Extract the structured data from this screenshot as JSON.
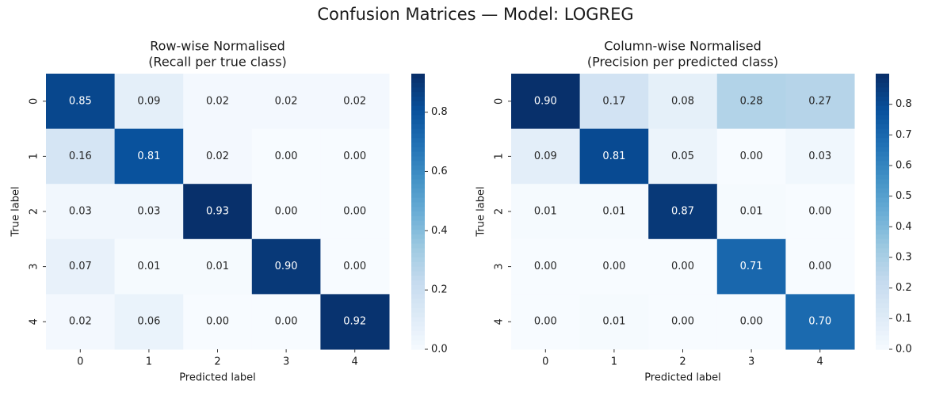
{
  "figure_title": "Confusion Matrices — Model: LOGREG",
  "colormap": [
    "#f7fbff",
    "#deebf7",
    "#c6dbef",
    "#9ecae1",
    "#6baed6",
    "#4292c6",
    "#2171b5",
    "#08519c",
    "#08306b"
  ],
  "chart_data": [
    {
      "type": "heatmap",
      "title": [
        "Row-wise Normalised",
        "(Recall per true class)"
      ],
      "xlabel": "Predicted label",
      "ylabel": "True label",
      "x_categories": [
        "0",
        "1",
        "2",
        "3",
        "4"
      ],
      "y_categories": [
        "0",
        "1",
        "2",
        "3",
        "4"
      ],
      "matrix": [
        [
          0.85,
          0.09,
          0.02,
          0.02,
          0.02
        ],
        [
          0.16,
          0.81,
          0.02,
          0.0,
          0.0
        ],
        [
          0.03,
          0.03,
          0.93,
          0.0,
          0.0
        ],
        [
          0.07,
          0.01,
          0.01,
          0.9,
          0.0
        ],
        [
          0.02,
          0.06,
          0.0,
          0.0,
          0.92
        ]
      ],
      "colorbar": {
        "vmin": 0.0,
        "vmax": 0.93,
        "ticks": [
          "0.0",
          "0.2",
          "0.4",
          "0.6",
          "0.8"
        ],
        "tick_values": [
          0.0,
          0.2,
          0.4,
          0.6,
          0.8
        ]
      }
    },
    {
      "type": "heatmap",
      "title": [
        "Column-wise Normalised",
        "(Precision per predicted class)"
      ],
      "xlabel": "Predicted label",
      "ylabel": "True label",
      "x_categories": [
        "0",
        "1",
        "2",
        "3",
        "4"
      ],
      "y_categories": [
        "0",
        "1",
        "2",
        "3",
        "4"
      ],
      "matrix": [
        [
          0.9,
          0.17,
          0.08,
          0.28,
          0.27
        ],
        [
          0.09,
          0.81,
          0.05,
          0.0,
          0.03
        ],
        [
          0.01,
          0.01,
          0.87,
          0.01,
          0.0
        ],
        [
          0.0,
          0.0,
          0.0,
          0.71,
          0.0
        ],
        [
          0.0,
          0.01,
          0.0,
          0.0,
          0.7
        ]
      ],
      "colorbar": {
        "vmin": 0.0,
        "vmax": 0.9,
        "ticks": [
          "0.0",
          "0.1",
          "0.2",
          "0.3",
          "0.4",
          "0.5",
          "0.6",
          "0.7",
          "0.8"
        ],
        "tick_values": [
          0.0,
          0.1,
          0.2,
          0.3,
          0.4,
          0.5,
          0.6,
          0.7,
          0.8
        ]
      }
    }
  ]
}
